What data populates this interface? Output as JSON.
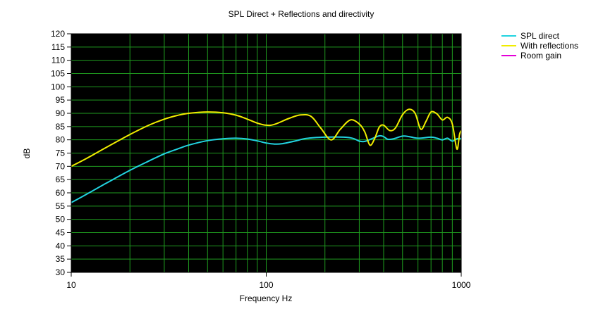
{
  "chart_data": {
    "type": "line",
    "title": "SPL Direct + Reflections and directivity",
    "xlabel": "Frequency Hz",
    "ylabel": "dB",
    "x_scale": "log",
    "xlim": [
      10,
      1000
    ],
    "ylim": [
      30,
      120
    ],
    "x_ticks": [
      10,
      100,
      1000
    ],
    "x_tick_labels": [
      "10",
      "100",
      "1000"
    ],
    "y_ticks": [
      30,
      35,
      40,
      45,
      50,
      55,
      60,
      65,
      70,
      75,
      80,
      85,
      90,
      95,
      100,
      105,
      110,
      115,
      120
    ],
    "grid": true,
    "legend_position": "top-right",
    "colors": {
      "plot_background": "#000000",
      "grid": "#1f9b1f"
    },
    "series": [
      {
        "name": "SPL direct",
        "color": "#22d3e0",
        "points": [
          [
            10,
            56.3
          ],
          [
            12,
            59.5
          ],
          [
            15,
            63.5
          ],
          [
            20,
            68.5
          ],
          [
            25,
            72.0
          ],
          [
            30,
            74.7
          ],
          [
            35,
            76.5
          ],
          [
            40,
            78.0
          ],
          [
            50,
            79.7
          ],
          [
            60,
            80.4
          ],
          [
            70,
            80.6
          ],
          [
            80,
            80.3
          ],
          [
            90,
            79.6
          ],
          [
            100,
            78.8
          ],
          [
            110,
            78.4
          ],
          [
            120,
            78.5
          ],
          [
            140,
            79.5
          ],
          [
            160,
            80.5
          ],
          [
            200,
            81.0
          ],
          [
            250,
            81.0
          ],
          [
            280,
            80.5
          ],
          [
            300,
            79.5
          ],
          [
            320,
            79.4
          ],
          [
            350,
            80.5
          ],
          [
            380,
            81.5
          ],
          [
            400,
            81.2
          ],
          [
            420,
            80.2
          ],
          [
            450,
            80.4
          ],
          [
            500,
            81.4
          ],
          [
            540,
            81.2
          ],
          [
            600,
            80.6
          ],
          [
            700,
            81.0
          ],
          [
            750,
            80.6
          ],
          [
            800,
            80.0
          ],
          [
            850,
            80.6
          ],
          [
            900,
            79.5
          ],
          [
            950,
            80.4
          ],
          [
            1000,
            80.5
          ]
        ]
      },
      {
        "name": "With reflections",
        "color": "#f0ec00",
        "points": [
          [
            10,
            70.0
          ],
          [
            12,
            73.0
          ],
          [
            15,
            77.0
          ],
          [
            20,
            82.0
          ],
          [
            25,
            85.5
          ],
          [
            30,
            87.8
          ],
          [
            35,
            89.2
          ],
          [
            40,
            90.0
          ],
          [
            50,
            90.5
          ],
          [
            60,
            90.2
          ],
          [
            70,
            89.3
          ],
          [
            80,
            87.8
          ],
          [
            90,
            86.3
          ],
          [
            100,
            85.5
          ],
          [
            110,
            85.8
          ],
          [
            130,
            88.0
          ],
          [
            150,
            89.4
          ],
          [
            170,
            88.8
          ],
          [
            190,
            84.5
          ],
          [
            215,
            80.0
          ],
          [
            240,
            84.0
          ],
          [
            270,
            87.5
          ],
          [
            300,
            86.0
          ],
          [
            320,
            83.0
          ],
          [
            340,
            78.0
          ],
          [
            360,
            80.5
          ],
          [
            380,
            84.8
          ],
          [
            400,
            85.5
          ],
          [
            430,
            83.5
          ],
          [
            460,
            84.5
          ],
          [
            500,
            89.5
          ],
          [
            540,
            91.5
          ],
          [
            580,
            90.0
          ],
          [
            620,
            84.0
          ],
          [
            660,
            87.0
          ],
          [
            700,
            90.5
          ],
          [
            750,
            89.8
          ],
          [
            800,
            87.5
          ],
          [
            850,
            88.5
          ],
          [
            900,
            86.0
          ],
          [
            950,
            76.5
          ],
          [
            980,
            82.0
          ],
          [
            1000,
            83.5
          ]
        ]
      },
      {
        "name": "Room gain",
        "color": "#e400d8",
        "points": []
      }
    ]
  }
}
